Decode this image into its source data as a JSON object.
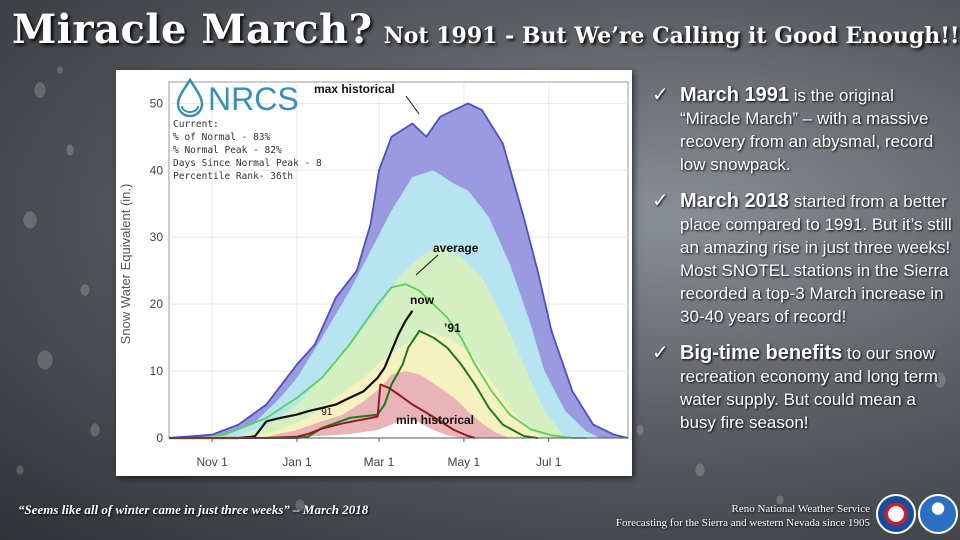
{
  "title": {
    "main": "Miracle March?",
    "sub": "Not 1991 - But We’re Calling it Good Enough!!"
  },
  "bullets": [
    {
      "check": "✓",
      "lead": "March 1991",
      "text": " is the original “Miracle March” – with a massive recovery from an abysmal, record low snowpack."
    },
    {
      "check": "✓",
      "lead": "March 2018",
      "text": " started from a better place compared to 1991. But it’s still an amazing rise in just three weeks! Most SNOTEL stations in the Sierra recorded a top-3 March increase in 30-40 years of record!"
    },
    {
      "check": "✓",
      "lead": "Big-time benefits",
      "text": " to our snow recreation economy and long term water supply. But could mean a busy fire season!"
    }
  ],
  "quote": "“Seems like all of winter came in just three weeks” – March 2018",
  "credit": {
    "line1": "Reno National Weather Service",
    "line2": "Forecasting for the Sierra and western Nevada since 1905"
  },
  "chart_data": {
    "type": "area",
    "ylabel": "Snow Water Equivalent (in.)",
    "ylim": [
      0,
      52
    ],
    "yticks": [
      "0",
      "10",
      "20",
      "30",
      "40",
      "50"
    ],
    "xticks": [
      {
        "label": "Nov 1",
        "day": 31
      },
      {
        "label": "Jan 1",
        "day": 92
      },
      {
        "label": "Mar 1",
        "day": 151
      },
      {
        "label": "May 1",
        "day": 212
      },
      {
        "label": "Jul 1",
        "day": 273
      }
    ],
    "xlim": [
      0,
      330
    ],
    "logo_text": "NRCS",
    "stats": {
      "heading": "Current:",
      "lines": [
        "% of Normal - 83%",
        "% Normal Peak - 82%",
        "Days Since Normal Peak - 8",
        "Percentile Rank- 36th"
      ]
    },
    "annotations": {
      "max": "max historical",
      "average": "average",
      "now": "now",
      "y91": "’91",
      "y91_low": "’91",
      "min": "min historical"
    },
    "bands": [
      {
        "color": "#9a9ae0",
        "x": [
          0,
          31,
          50,
          70,
          92,
          105,
          120,
          135,
          145,
          151,
          160,
          175,
          185,
          195,
          205,
          215,
          225,
          240,
          255,
          265,
          275,
          290,
          305,
          320,
          330
        ],
        "y": [
          0,
          0.5,
          2,
          5,
          11,
          14,
          21,
          25,
          32,
          40,
          45,
          47,
          45,
          48,
          49,
          50,
          49,
          44,
          33,
          25,
          16,
          7,
          2,
          0.5,
          0
        ]
      },
      {
        "color": "#b6e4f0",
        "x": [
          0,
          40,
          60,
          80,
          92,
          110,
          130,
          145,
          160,
          175,
          190,
          205,
          215,
          230,
          245,
          260,
          270,
          285,
          300,
          310
        ],
        "y": [
          0,
          0.5,
          2,
          6,
          9,
          15,
          22,
          28,
          34,
          39,
          40,
          38,
          37,
          33,
          26,
          17,
          10,
          4,
          1,
          0
        ]
      },
      {
        "color": "#d4f0c2",
        "x": [
          0,
          50,
          70,
          92,
          110,
          130,
          150,
          165,
          180,
          195,
          210,
          225,
          240,
          255,
          270,
          285
        ],
        "y": [
          0,
          0.3,
          2,
          5,
          9,
          14,
          19,
          24,
          27,
          29,
          27,
          24,
          18,
          11,
          4,
          0
        ]
      },
      {
        "color": "#f6f2c0",
        "x": [
          0,
          60,
          80,
          100,
          120,
          140,
          155,
          170,
          185,
          200,
          215,
          230,
          245,
          260,
          270
        ],
        "y": [
          0,
          0.2,
          1.2,
          3,
          6,
          9,
          12,
          14,
          16,
          15,
          13,
          9,
          4.5,
          1.2,
          0
        ]
      },
      {
        "color": "#e8b4b8",
        "x": [
          0,
          70,
          92,
          110,
          125,
          140,
          152,
          160,
          170,
          180,
          190,
          205,
          215,
          225,
          235,
          245
        ],
        "y": [
          0,
          0.2,
          1.2,
          2.5,
          3.5,
          5.5,
          7.5,
          9.5,
          10,
          9.5,
          8.2,
          6,
          4,
          2.2,
          0.8,
          0
        ]
      },
      {
        "color": "#ffffff",
        "x": [
          0,
          100,
          130,
          150,
          160,
          170,
          180,
          190,
          200,
          210
        ],
        "y": [
          0,
          0.2,
          0.6,
          1.2,
          2,
          3,
          2.3,
          1.2,
          0.4,
          0
        ]
      }
    ],
    "series": [
      {
        "name": "average",
        "color": "#5ad05a",
        "width": 1.8,
        "x": [
          0,
          40,
          70,
          92,
          110,
          130,
          150,
          160,
          170,
          180,
          190,
          200,
          210,
          220,
          232,
          245,
          260,
          275,
          290,
          300
        ],
        "y": [
          0,
          0.5,
          3,
          6,
          9,
          14,
          20,
          22.5,
          23,
          22,
          20,
          18,
          15,
          11,
          7,
          3.5,
          1.3,
          0.4,
          0,
          0
        ]
      },
      {
        "name": "max historical",
        "color": "#4f4fc4",
        "width": 1.8,
        "x": [
          0,
          31,
          50,
          70,
          92,
          105,
          120,
          135,
          145,
          151,
          160,
          175,
          185,
          195,
          205,
          215,
          225,
          240,
          255,
          265,
          275,
          290,
          305,
          320,
          330
        ],
        "y": [
          0,
          0.5,
          2,
          5,
          11,
          14,
          21,
          25,
          32,
          40,
          45,
          47,
          45,
          48,
          49,
          50,
          49,
          44,
          33,
          25,
          16,
          7,
          2,
          0.5,
          0
        ]
      },
      {
        "name": "now",
        "color": "#111111",
        "width": 2.2,
        "x": [
          0,
          50,
          60,
          62,
          70,
          80,
          92,
          100,
          110,
          120,
          130,
          140,
          150,
          155,
          160,
          165,
          170,
          175
        ],
        "y": [
          0,
          0,
          0.2,
          0.3,
          2.5,
          3,
          3.5,
          4,
          4.5,
          5,
          6,
          7,
          9,
          10.5,
          13,
          15.5,
          17.5,
          19
        ]
      },
      {
        "name": "’91",
        "color": "#1e7a1e",
        "width": 2,
        "x": [
          0,
          92,
          100,
          110,
          130,
          150,
          155,
          160,
          168,
          172,
          180,
          190,
          200,
          210,
          220,
          230,
          240,
          255,
          265
        ],
        "y": [
          0,
          0,
          0.2,
          1.5,
          3,
          3.5,
          5,
          8,
          11,
          13.5,
          16,
          15,
          13.5,
          11,
          8,
          4.5,
          2,
          0.3,
          0
        ]
      },
      {
        "name": "min historical",
        "color": "#8b1e1e",
        "width": 2,
        "x": [
          0,
          70,
          92,
          100,
          110,
          125,
          140,
          150,
          152,
          158,
          165,
          175,
          185,
          195,
          205,
          215,
          220
        ],
        "y": [
          0,
          0,
          0.2,
          0.6,
          1.4,
          2.2,
          2.8,
          3.2,
          8,
          7.5,
          6.5,
          5,
          3.8,
          2.5,
          1.2,
          0.3,
          0
        ]
      }
    ]
  }
}
